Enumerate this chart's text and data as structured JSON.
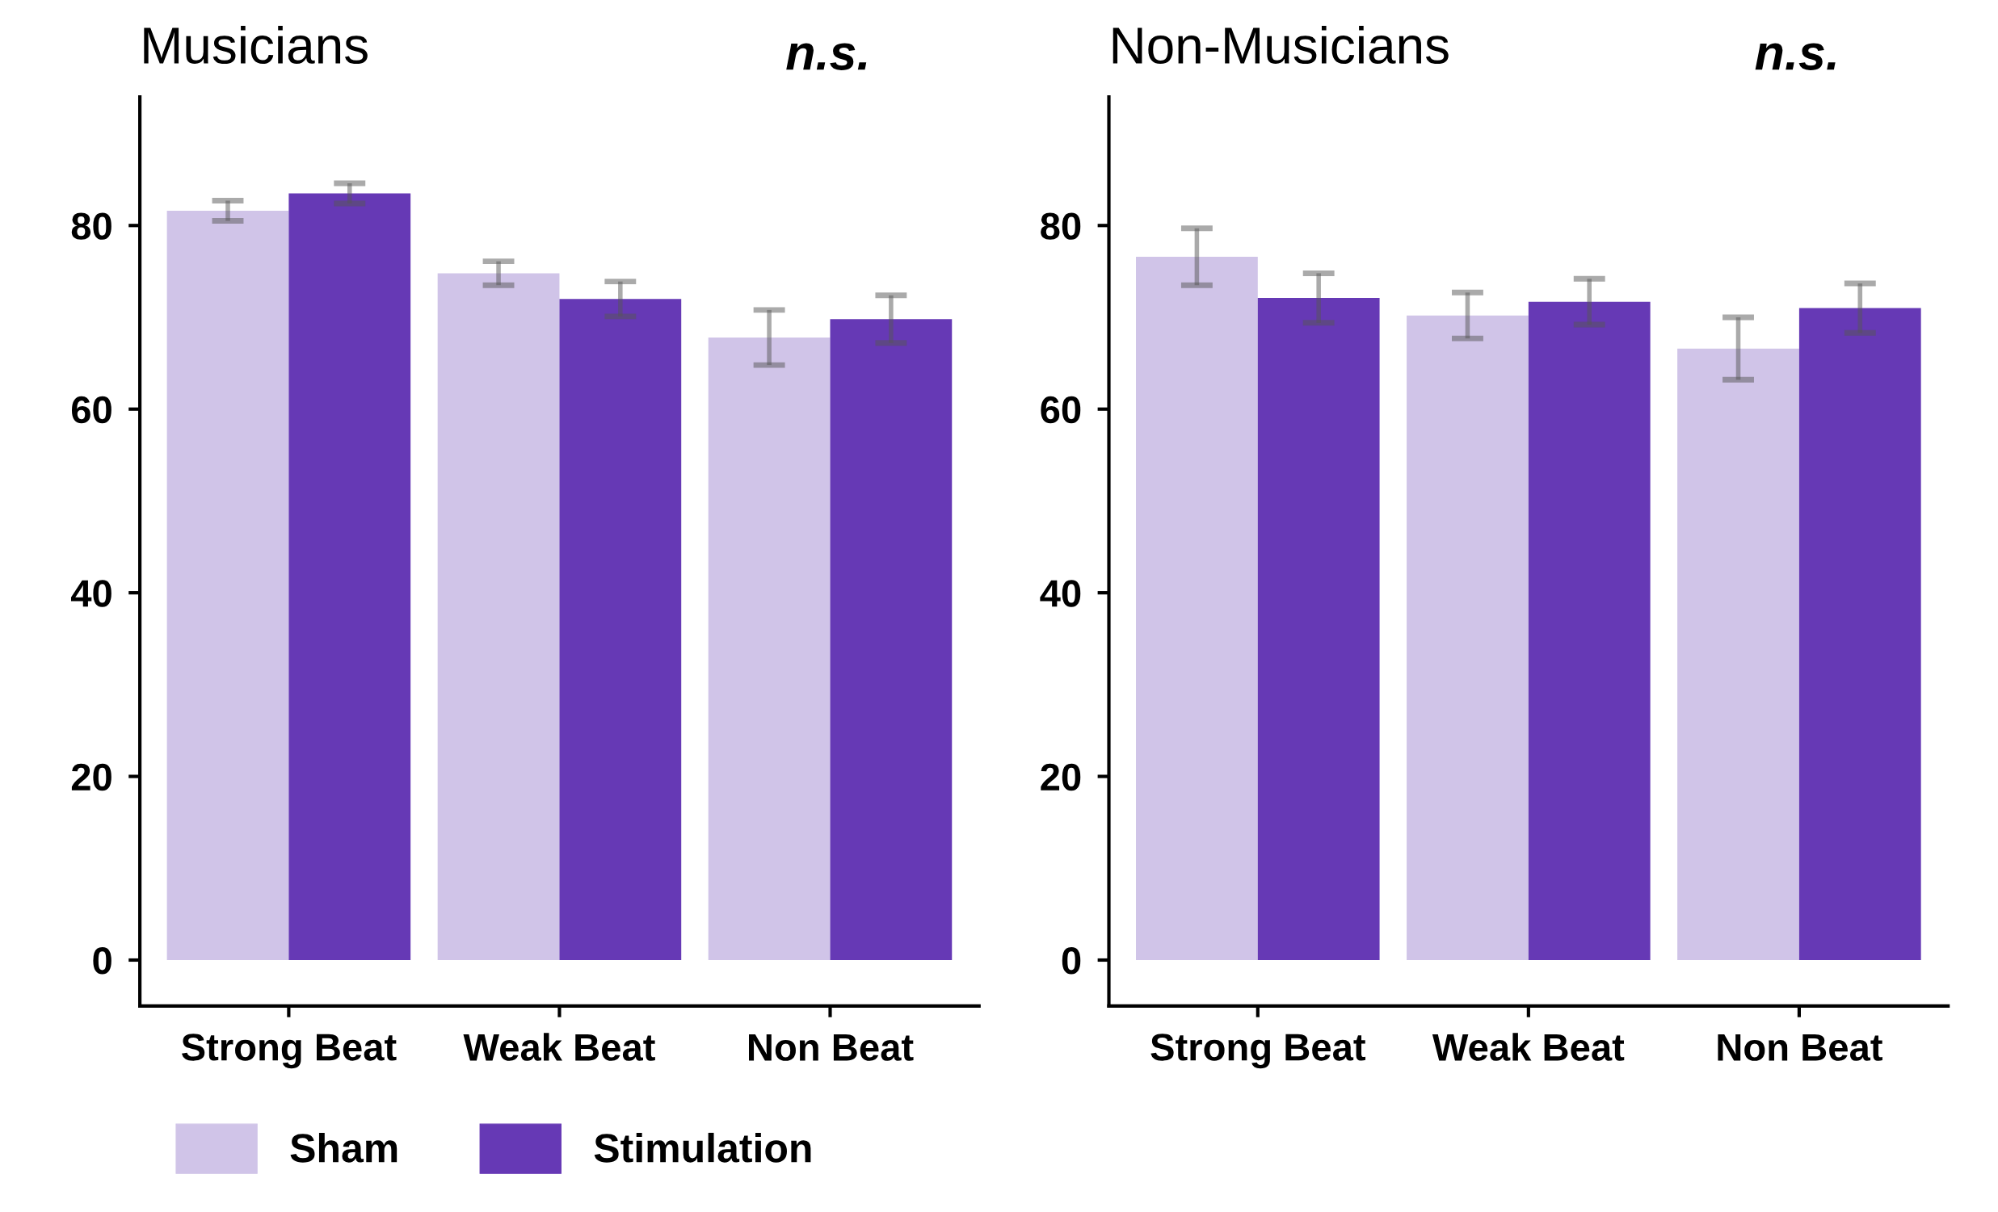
{
  "chart_data": [
    {
      "type": "bar",
      "title": "Musicians",
      "categories": [
        "Strong Beat",
        "Weak Beat",
        "Non Beat"
      ],
      "ylim": [
        -5,
        94
      ],
      "yticks": [
        0,
        20,
        40,
        60,
        80
      ],
      "grid": false,
      "legend": "bottom",
      "annotations": [
        "n.s."
      ],
      "series": [
        {
          "name": "Sham",
          "color": "#d0c4e8",
          "values": [
            81.6,
            74.8,
            67.8
          ],
          "errors": [
            1.1,
            1.3,
            3.0
          ]
        },
        {
          "name": "Stimulation",
          "color": "#6639b5",
          "values": [
            83.5,
            72.0,
            69.8
          ],
          "errors": [
            1.1,
            1.9,
            2.6
          ]
        }
      ]
    },
    {
      "type": "bar",
      "title": "Non-Musicians",
      "categories": [
        "Strong Beat",
        "Weak Beat",
        "Non Beat"
      ],
      "ylim": [
        -5,
        94
      ],
      "yticks": [
        0,
        20,
        40,
        60,
        80
      ],
      "grid": false,
      "annotations": [
        "n.s."
      ],
      "series": [
        {
          "color": "#d0c4e8",
          "values": [
            76.6,
            70.2,
            66.6
          ],
          "errors": [
            3.1,
            2.5,
            3.4
          ]
        },
        {
          "color": "#6639b5",
          "values": [
            72.1,
            71.7,
            71.0
          ],
          "errors": [
            2.7,
            2.5,
            2.7
          ]
        }
      ]
    }
  ]
}
